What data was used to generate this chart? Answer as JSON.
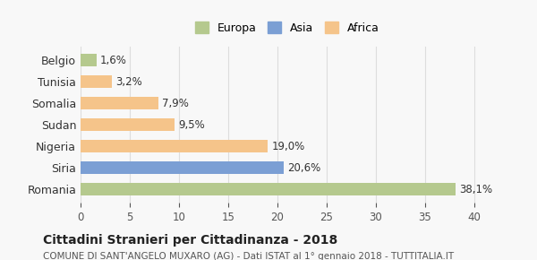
{
  "categories": [
    "Romania",
    "Siria",
    "Nigeria",
    "Sudan",
    "Somalia",
    "Tunisia",
    "Belgio"
  ],
  "values": [
    38.1,
    20.6,
    19.0,
    9.5,
    7.9,
    3.2,
    1.6
  ],
  "labels": [
    "38,1%",
    "20,6%",
    "19,0%",
    "9,5%",
    "7,9%",
    "3,2%",
    "1,6%"
  ],
  "colors": [
    "#b5c98e",
    "#7b9fd4",
    "#f5c48a",
    "#f5c48a",
    "#f5c48a",
    "#f5c48a",
    "#b5c98e"
  ],
  "legend_items": [
    {
      "label": "Europa",
      "color": "#b5c98e"
    },
    {
      "label": "Asia",
      "color": "#7b9fd4"
    },
    {
      "label": "Africa",
      "color": "#f5c48a"
    }
  ],
  "xlim": [
    0,
    42
  ],
  "xticks": [
    0,
    5,
    10,
    15,
    20,
    25,
    30,
    35,
    40
  ],
  "title": "Cittadini Stranieri per Cittadinanza - 2018",
  "subtitle": "COMUNE DI SANT'ANGELO MUXARO (AG) - Dati ISTAT al 1° gennaio 2018 - TUTTITALIA.IT",
  "background_color": "#f8f8f8",
  "grid_color": "#dddddd"
}
